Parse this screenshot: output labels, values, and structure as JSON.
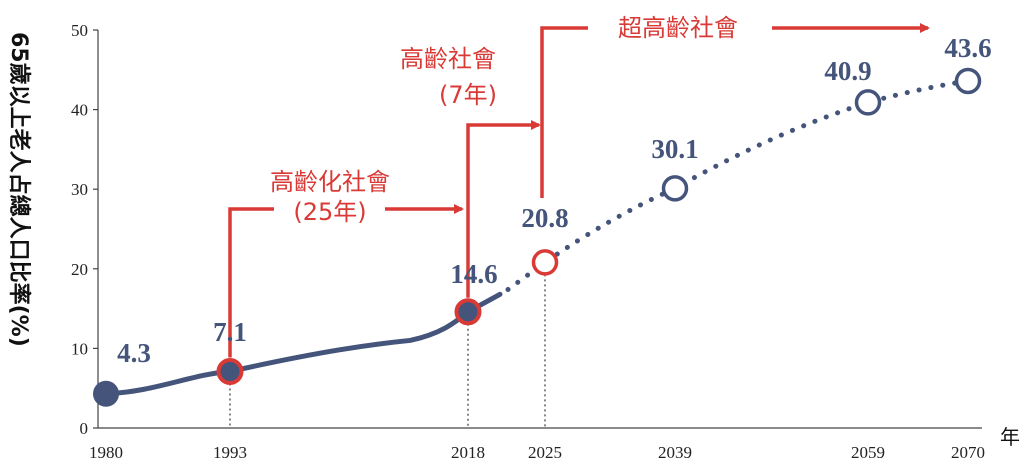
{
  "chart_data": {
    "type": "line",
    "ylabel": "65歲以上老人占總人口比率(%)",
    "x_unit": "年",
    "ylim": [
      0,
      50
    ],
    "y_ticks": [
      0,
      10,
      20,
      30,
      40,
      50
    ],
    "x_ticks": [
      1980,
      1993,
      2018,
      2025,
      2039,
      2059,
      2070
    ],
    "points": [
      {
        "x": 1980,
        "y": 4.3,
        "label": "4.3",
        "kind": "actual-start"
      },
      {
        "x": 1993,
        "y": 7.1,
        "label": "7.1",
        "kind": "actual-milestone"
      },
      {
        "x": 2018,
        "y": 14.6,
        "label": "14.6",
        "kind": "actual-milestone"
      },
      {
        "x": 2025,
        "y": 20.8,
        "label": "20.8",
        "kind": "projected-milestone"
      },
      {
        "x": 2039,
        "y": 30.1,
        "label": "30.1",
        "kind": "projected"
      },
      {
        "x": 2059,
        "y": 40.9,
        "label": "40.9",
        "kind": "projected"
      },
      {
        "x": 2070,
        "y": 43.6,
        "label": "43.6",
        "kind": "projected"
      }
    ],
    "phases": [
      {
        "name": "高齡化社會",
        "duration": "(25年)",
        "from": 1993,
        "to": 2018
      },
      {
        "name": "高齡社會",
        "duration": "(7年)",
        "from": 2018,
        "to": 2025
      },
      {
        "name": "超高齡社會",
        "duration": "",
        "from": 2025,
        "to": 2070
      }
    ],
    "colors": {
      "series": "#44547a",
      "highlight": "#d93a36",
      "axis": "#444444"
    }
  }
}
